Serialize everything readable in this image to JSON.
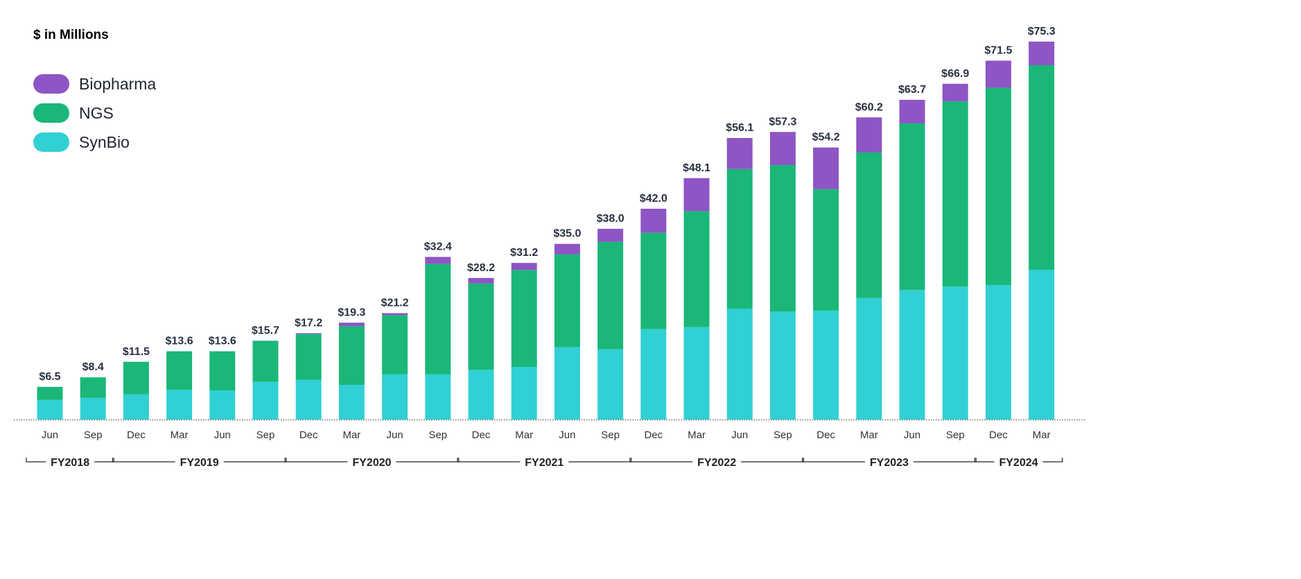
{
  "chart_data": {
    "type": "bar",
    "stacked": true,
    "title": "",
    "ylabel": "$ in Millions",
    "xlabel": "",
    "ylim": [
      0,
      75.3
    ],
    "grid": false,
    "legend_placement": "top-left",
    "categories": [
      "Jun",
      "Sep",
      "Dec",
      "Mar",
      "Jun",
      "Sep",
      "Dec",
      "Mar",
      "Jun",
      "Sep",
      "Dec",
      "Mar",
      "Jun",
      "Sep",
      "Dec",
      "Mar",
      "Jun",
      "Sep",
      "Dec",
      "Mar",
      "Jun",
      "Sep",
      "Dec",
      "Mar"
    ],
    "fiscal_years": [
      {
        "label": "FY2018",
        "from": 0,
        "to": 1
      },
      {
        "label": "FY2019",
        "from": 2,
        "to": 5
      },
      {
        "label": "FY2020",
        "from": 6,
        "to": 9
      },
      {
        "label": "FY2021",
        "from": 10,
        "to": 13
      },
      {
        "label": "FY2022",
        "from": 14,
        "to": 17
      },
      {
        "label": "FY2023",
        "from": 18,
        "to": 21
      },
      {
        "label": "FY2024",
        "from": 22,
        "to": 23
      }
    ],
    "totals": [
      "$6.5",
      "$8.4",
      "$11.5",
      "$13.6",
      "$13.6",
      "$15.7",
      "$17.2",
      "$19.3",
      "$21.2",
      "$32.4",
      "$28.2",
      "$31.2",
      "$35.0",
      "$38.0",
      "$42.0",
      "$48.1",
      "$56.1",
      "$57.3",
      "$54.2",
      "$60.2",
      "$63.7",
      "$66.9",
      "$71.5",
      "$75.3"
    ],
    "series": [
      {
        "name": "SynBio",
        "color": "#31d0d4",
        "values": [
          3.9,
          4.3,
          5.0,
          5.9,
          5.8,
          7.5,
          7.9,
          6.9,
          9.0,
          9.0,
          9.9,
          10.5,
          14.4,
          14.0,
          18.0,
          18.4,
          22.1,
          21.5,
          21.7,
          24.2,
          25.8,
          26.5,
          26.8,
          29.8
        ]
      },
      {
        "name": "NGS",
        "color": "#1ab778",
        "values": [
          2.6,
          4.1,
          6.5,
          7.7,
          7.8,
          8.2,
          9.1,
          11.7,
          11.8,
          22.0,
          17.2,
          19.3,
          18.5,
          21.4,
          19.2,
          23.1,
          27.8,
          29.2,
          24.2,
          29.0,
          33.2,
          36.9,
          39.3,
          40.8
        ]
      },
      {
        "name": "Biopharma",
        "color": "#8e55c4",
        "values": [
          0,
          0,
          0,
          0,
          0,
          0,
          0.2,
          0.7,
          0.4,
          1.4,
          1.1,
          1.4,
          2.1,
          2.6,
          4.8,
          6.6,
          6.2,
          6.6,
          8.3,
          7.0,
          4.7,
          3.5,
          5.4,
          4.7
        ]
      }
    ]
  },
  "legend": [
    {
      "label": "Biopharma",
      "color": "#8e55c4"
    },
    {
      "label": "NGS",
      "color": "#1ab778"
    },
    {
      "label": "SynBio",
      "color": "#31d0d4"
    }
  ]
}
